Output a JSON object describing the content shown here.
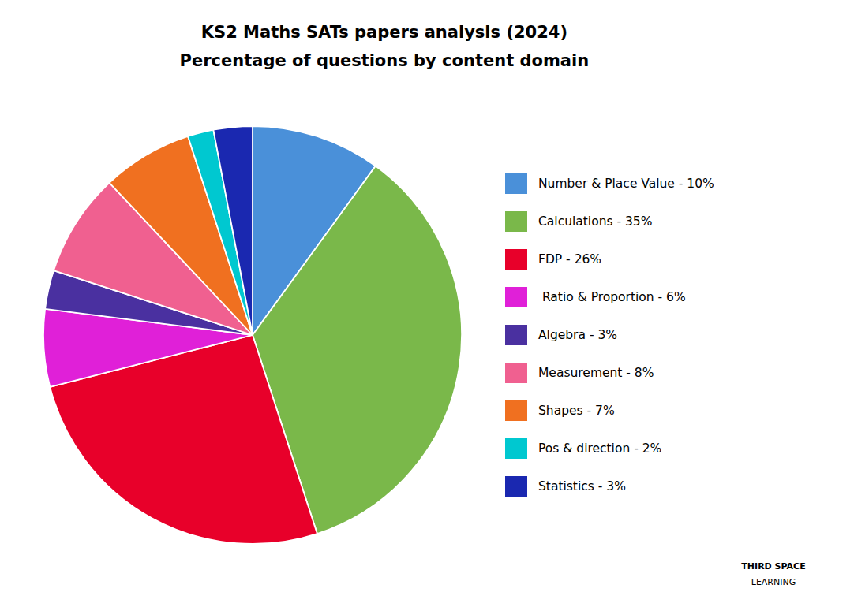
{
  "chart_data": {
    "type": "pie",
    "title": "KS2 Maths SATs papers analysis (2024)",
    "subtitle": "Percentage of questions by content domain",
    "categories": [
      "Number & Place Value - 10%",
      "Calculations - 35%",
      "FDP - 26%",
      " Ratio & Proportion - 6%",
      "Algebra - 3%",
      "Measurement - 8%",
      "Shapes - 7%",
      "Pos & direction - 2%",
      "Statistics - 3%"
    ],
    "values": [
      10,
      35,
      26,
      6,
      3,
      8,
      7,
      2,
      3
    ],
    "colors": [
      "#4a90d9",
      "#7ab84a",
      "#e8002a",
      "#e020d8",
      "#4a30a0",
      "#f06090",
      "#f07020",
      "#00c8d0",
      "#1a28b0"
    ],
    "legend": "right",
    "annotations": [
      "THIRD SPACE",
      "LEARNING"
    ]
  }
}
